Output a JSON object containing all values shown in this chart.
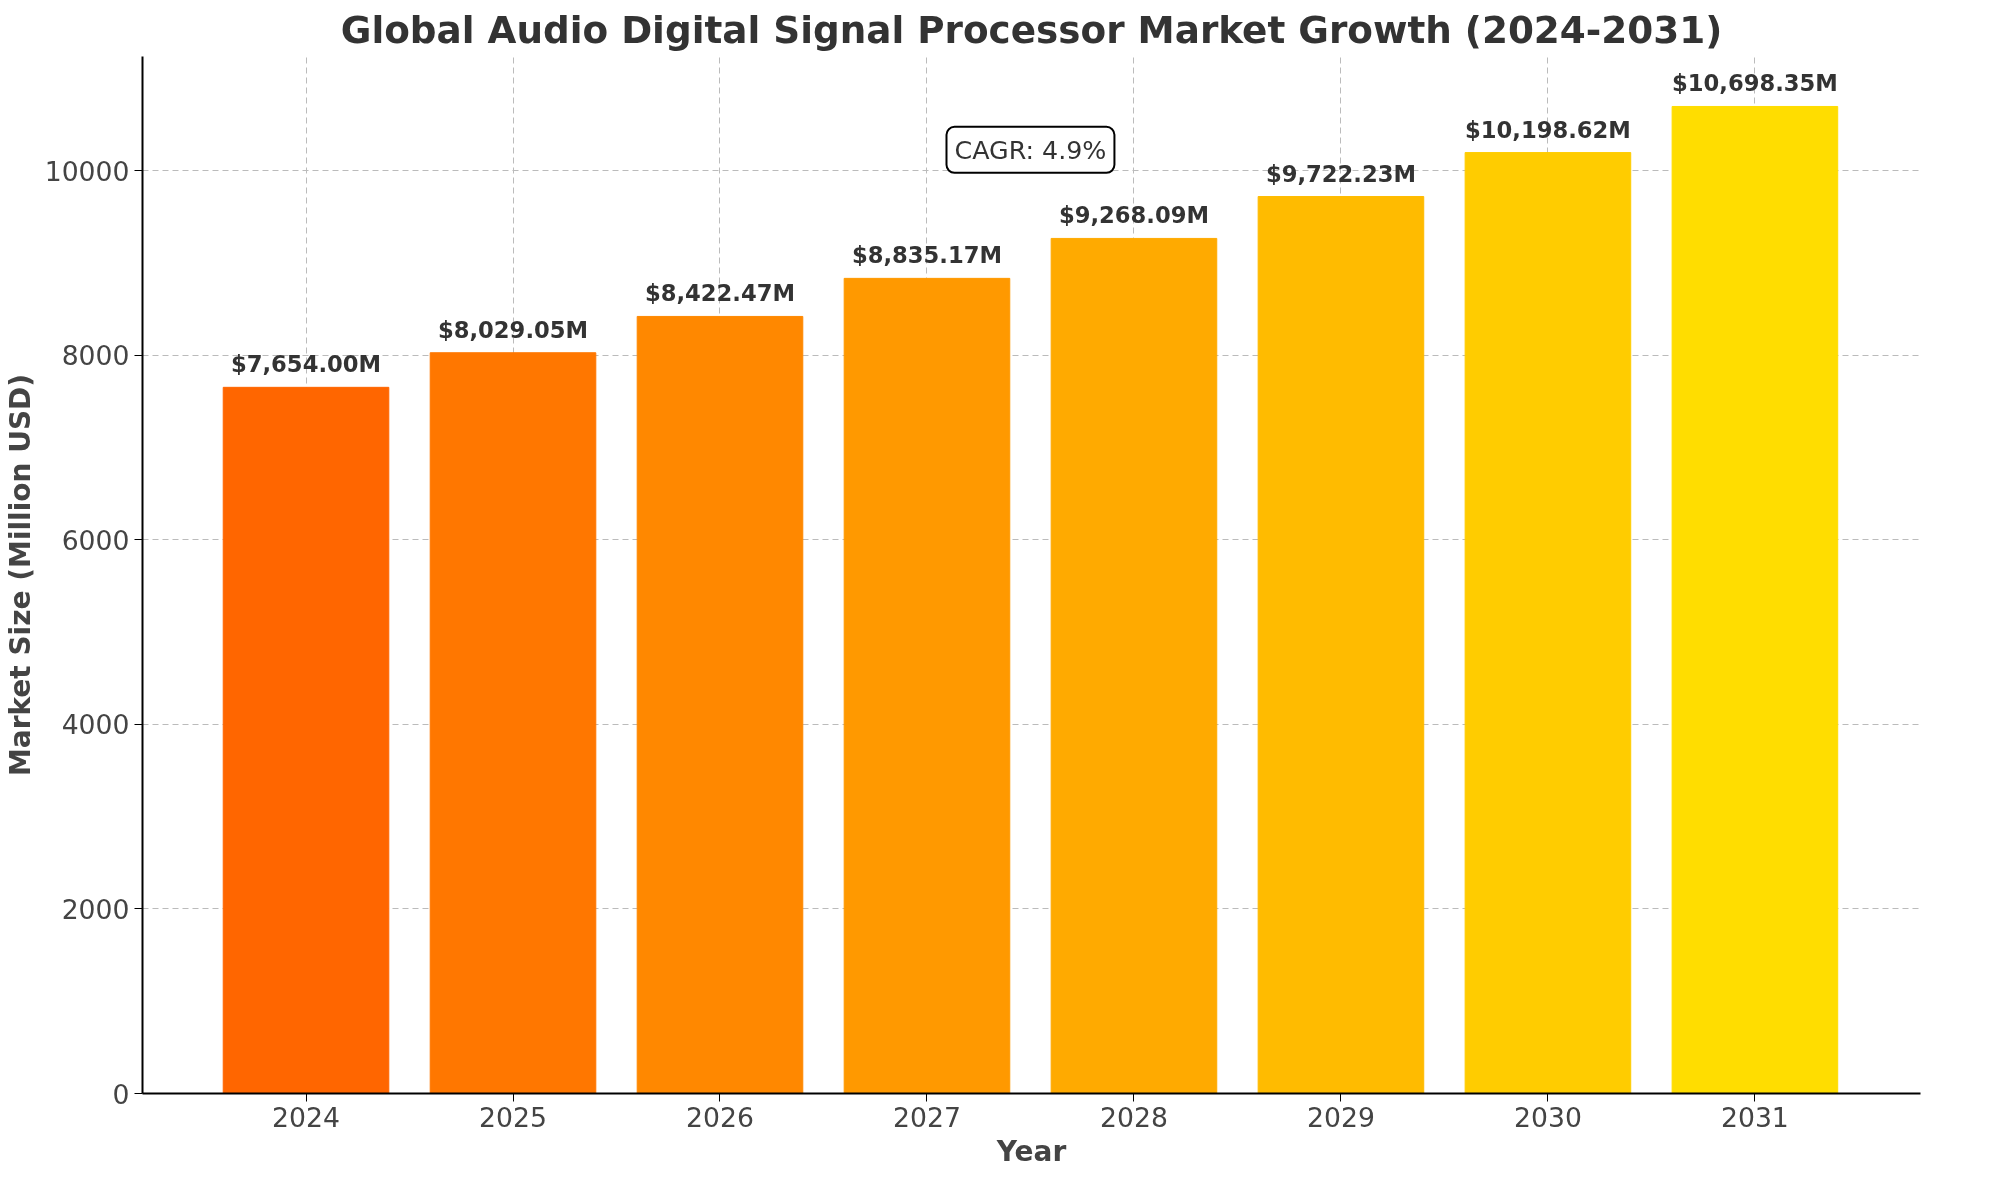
{
  "chart_data": {
    "type": "bar",
    "title": "Global Audio Digital Signal Processor Market Growth (2024-2031)",
    "xlabel": "Year",
    "ylabel": "Market Size (Million USD)",
    "categories": [
      "2024",
      "2025",
      "2026",
      "2027",
      "2028",
      "2029",
      "2030",
      "2031"
    ],
    "values": [
      7654.0,
      8029.05,
      8422.47,
      8835.17,
      9268.09,
      9722.23,
      10198.62,
      10698.35
    ],
    "colors": [
      "#ff6600",
      "#ff7700",
      "#ff8800",
      "#ff9900",
      "#ffaa00",
      "#ffbb00",
      "#ffcc00",
      "#ffdd00"
    ],
    "value_labels": [
      "$7,654.00M",
      "$8,029.05M",
      "$8,422.47M",
      "$8,835.17M",
      "$9,268.09M",
      "$9,722.23M",
      "$10,198.62M",
      "$10,698.35M"
    ],
    "ylim": [
      0,
      11240
    ],
    "yticks": [
      0,
      2000,
      4000,
      6000,
      8000,
      10000
    ],
    "grid": true,
    "annotations": [
      "CAGR: 4.9%"
    ]
  }
}
